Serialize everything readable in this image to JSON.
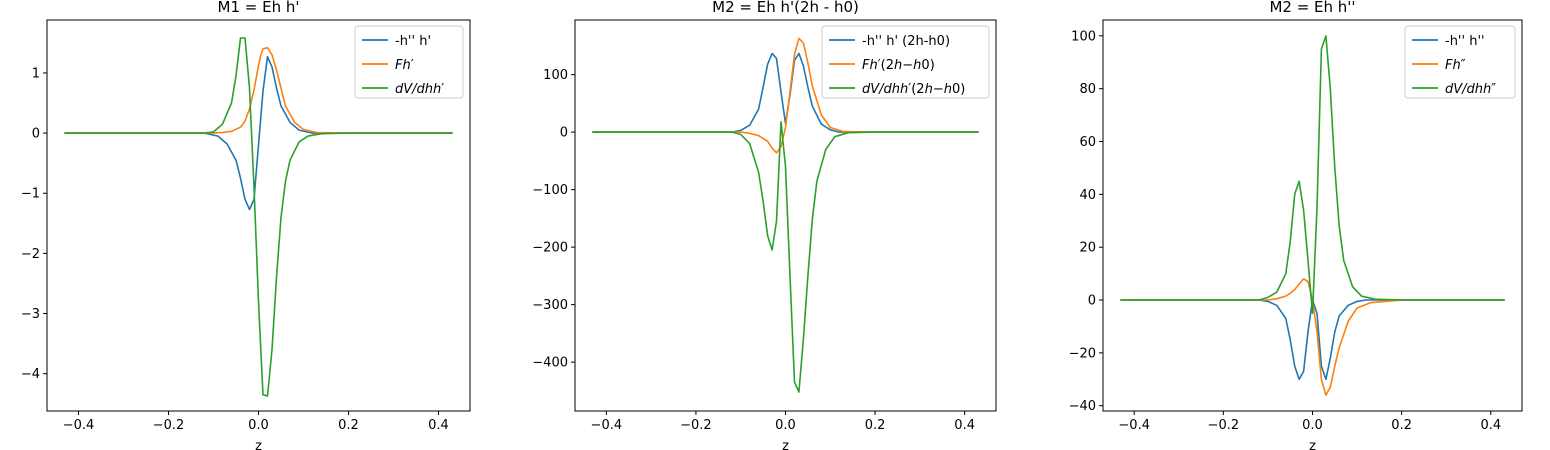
{
  "chart_data": [
    {
      "type": "line",
      "title": "M1 = Eh h'",
      "xlabel": "z",
      "ylabel": "",
      "xlim": [
        -0.47,
        0.47
      ],
      "ylim": [
        -4.62,
        1.88
      ],
      "xticks": [
        -0.4,
        -0.2,
        0.0,
        0.2,
        0.4
      ],
      "xtick_labels": [
        "−0.4",
        "−0.2",
        "0.0",
        "0.2",
        "0.4"
      ],
      "yticks": [
        1,
        0,
        -1,
        -2,
        -3,
        -4
      ],
      "ytick_labels": [
        "1",
        "0",
        "−1",
        "−2",
        "−3",
        "−4"
      ],
      "legend_position": "top-right",
      "grid": false,
      "series": [
        {
          "name": "-h'' h'",
          "color": "#1f77b4",
          "x": [
            -0.43,
            -0.2,
            -0.12,
            -0.09,
            -0.07,
            -0.05,
            -0.04,
            -0.03,
            -0.02,
            -0.01,
            0.0,
            0.01,
            0.02,
            0.03,
            0.04,
            0.05,
            0.07,
            0.09,
            0.12,
            0.2,
            0.43
          ],
          "y": [
            0,
            0,
            0,
            -0.05,
            -0.18,
            -0.45,
            -0.75,
            -1.1,
            -1.27,
            -1.1,
            -0.2,
            0.7,
            1.27,
            1.1,
            0.75,
            0.45,
            0.18,
            0.05,
            0,
            0,
            0
          ]
        },
        {
          "name": "Fh'",
          "color": "#ff7f0e",
          "x": [
            -0.43,
            -0.2,
            -0.1,
            -0.08,
            -0.06,
            -0.04,
            -0.03,
            -0.02,
            -0.01,
            0.0,
            0.005,
            0.01,
            0.02,
            0.03,
            0.04,
            0.05,
            0.06,
            0.08,
            0.1,
            0.13,
            0.2,
            0.43
          ],
          "y": [
            0,
            0,
            0,
            0.01,
            0.03,
            0.1,
            0.2,
            0.4,
            0.72,
            1.12,
            1.3,
            1.4,
            1.42,
            1.3,
            1.05,
            0.75,
            0.45,
            0.18,
            0.06,
            0.01,
            0,
            0
          ]
        },
        {
          "name": "dV/dhh'",
          "color": "#2ca02c",
          "x": [
            -0.43,
            -0.2,
            -0.12,
            -0.1,
            -0.08,
            -0.06,
            -0.05,
            -0.04,
            -0.03,
            -0.02,
            -0.01,
            0.0,
            0.01,
            0.02,
            0.03,
            0.04,
            0.05,
            0.06,
            0.07,
            0.09,
            0.11,
            0.14,
            0.2,
            0.43
          ],
          "y": [
            0,
            0,
            0,
            0.02,
            0.15,
            0.5,
            0.95,
            1.58,
            1.58,
            0.75,
            -0.9,
            -2.8,
            -4.35,
            -4.37,
            -3.6,
            -2.4,
            -1.4,
            -0.8,
            -0.45,
            -0.15,
            -0.05,
            -0.01,
            0,
            0
          ]
        }
      ]
    },
    {
      "type": "line",
      "title": "M2 = Eh h'(2h - h0)",
      "xlabel": "z",
      "ylabel": "",
      "xlim": [
        -0.47,
        0.47
      ],
      "ylim": [
        -485,
        195
      ],
      "xticks": [
        -0.4,
        -0.2,
        0.0,
        0.2,
        0.4
      ],
      "xtick_labels": [
        "−0.4",
        "−0.2",
        "0.0",
        "0.2",
        "0.4"
      ],
      "yticks": [
        100,
        0,
        -100,
        -200,
        -300,
        -400
      ],
      "ytick_labels": [
        "100",
        "0",
        "−100",
        "−200",
        "−300",
        "−400"
      ],
      "legend_position": "top-right",
      "grid": false,
      "series": [
        {
          "name": "-h'' h' (2h-h0)",
          "color": "#1f77b4",
          "x": [
            -0.43,
            -0.2,
            -0.12,
            -0.1,
            -0.08,
            -0.06,
            -0.05,
            -0.04,
            -0.03,
            -0.02,
            -0.01,
            0.0,
            0.01,
            0.02,
            0.03,
            0.04,
            0.05,
            0.06,
            0.08,
            0.1,
            0.12,
            0.2,
            0.43
          ],
          "y": [
            0,
            0,
            0,
            3,
            12,
            40,
            78,
            118,
            137,
            128,
            70,
            15,
            65,
            125,
            137,
            115,
            78,
            45,
            14,
            4,
            0,
            0,
            0
          ]
        },
        {
          "name": "Fh'(2h-h0)",
          "color": "#ff7f0e",
          "x": [
            -0.43,
            -0.2,
            -0.1,
            -0.08,
            -0.06,
            -0.04,
            -0.03,
            -0.02,
            -0.01,
            0.0,
            0.01,
            0.02,
            0.03,
            0.04,
            0.05,
            0.06,
            0.08,
            0.1,
            0.13,
            0.2,
            0.43
          ],
          "y": [
            0,
            0,
            0,
            -2,
            -6,
            -16,
            -28,
            -36,
            -25,
            8,
            70,
            135,
            163,
            155,
            120,
            80,
            30,
            8,
            1,
            0,
            0
          ]
        },
        {
          "name": "dV/dhh'(2h-h0)",
          "color": "#2ca02c",
          "x": [
            -0.43,
            -0.2,
            -0.12,
            -0.1,
            -0.08,
            -0.06,
            -0.05,
            -0.04,
            -0.03,
            -0.02,
            -0.01,
            0.0,
            0.01,
            0.02,
            0.03,
            0.04,
            0.05,
            0.06,
            0.07,
            0.09,
            0.11,
            0.14,
            0.2,
            0.43
          ],
          "y": [
            0,
            0,
            0,
            -4,
            -20,
            -70,
            -120,
            -180,
            -205,
            -155,
            18,
            -60,
            -250,
            -435,
            -452,
            -360,
            -250,
            -150,
            -85,
            -30,
            -8,
            -1,
            0,
            0
          ]
        }
      ]
    },
    {
      "type": "line",
      "title": "M2 = Eh h''",
      "xlabel": "z",
      "ylabel": "",
      "xlim": [
        -0.47,
        0.47
      ],
      "ylim": [
        -42,
        106
      ],
      "xticks": [
        -0.4,
        -0.2,
        0.0,
        0.2,
        0.4
      ],
      "xtick_labels": [
        "−0.4",
        "−0.2",
        "0.0",
        "0.2",
        "0.4"
      ],
      "yticks": [
        100,
        80,
        60,
        40,
        20,
        0,
        -20,
        -40
      ],
      "ytick_labels": [
        "100",
        "80",
        "60",
        "40",
        "20",
        "0",
        "−20",
        "−40"
      ],
      "legend_position": "top-right",
      "grid": false,
      "series": [
        {
          "name": "-h'' h''",
          "color": "#1f77b4",
          "x": [
            -0.43,
            -0.2,
            -0.12,
            -0.1,
            -0.08,
            -0.06,
            -0.05,
            -0.04,
            -0.03,
            -0.02,
            -0.01,
            0.0,
            0.01,
            0.02,
            0.03,
            0.04,
            0.05,
            0.06,
            0.08,
            0.1,
            0.12,
            0.2,
            0.43
          ],
          "y": [
            0,
            0,
            0,
            -0.5,
            -2,
            -7,
            -15,
            -25,
            -30,
            -27,
            -12,
            0,
            -5,
            -25,
            -30,
            -22,
            -12,
            -6,
            -2,
            -0.5,
            0,
            0,
            0
          ]
        },
        {
          "name": "Fh''",
          "color": "#ff7f0e",
          "x": [
            -0.43,
            -0.2,
            -0.1,
            -0.08,
            -0.06,
            -0.05,
            -0.04,
            -0.03,
            -0.02,
            -0.01,
            0.0,
            0.01,
            0.02,
            0.03,
            0.04,
            0.05,
            0.06,
            0.08,
            0.1,
            0.13,
            0.2,
            0.3,
            0.43
          ],
          "y": [
            0,
            0,
            0,
            0.5,
            1.5,
            2.5,
            4,
            6,
            8,
            7,
            0,
            -12,
            -30,
            -36,
            -33,
            -25,
            -18,
            -8,
            -3,
            -1,
            0,
            0,
            0
          ]
        },
        {
          "name": "dV/dhh''",
          "color": "#2ca02c",
          "x": [
            -0.43,
            -0.2,
            -0.12,
            -0.1,
            -0.08,
            -0.06,
            -0.05,
            -0.04,
            -0.03,
            -0.02,
            -0.01,
            0.0,
            0.01,
            0.02,
            0.03,
            0.04,
            0.05,
            0.06,
            0.07,
            0.09,
            0.11,
            0.14,
            0.2,
            0.43
          ],
          "y": [
            0,
            0,
            0,
            1,
            3,
            10,
            22,
            40,
            45,
            34,
            15,
            -5,
            35,
            95,
            100,
            80,
            50,
            28,
            15,
            5,
            1.5,
            0.3,
            0,
            0
          ]
        }
      ]
    }
  ]
}
